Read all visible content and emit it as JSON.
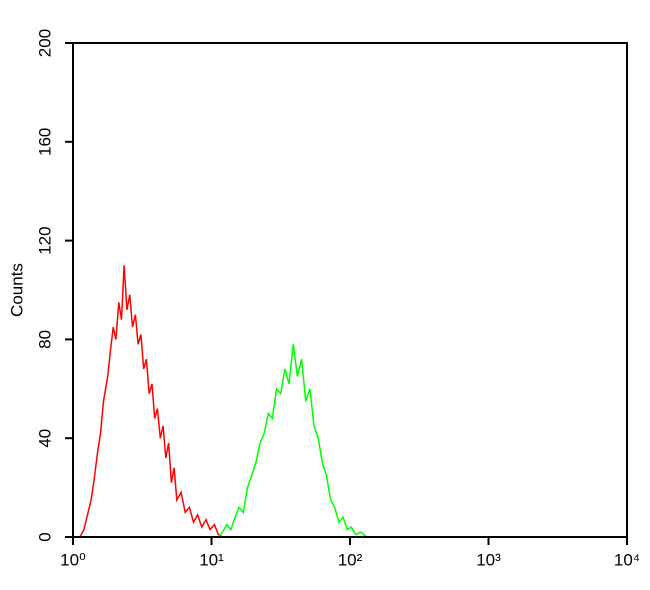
{
  "chart_data": {
    "type": "line",
    "y_label": "Counts",
    "x_scale": "log",
    "xlim": [
      1,
      10000
    ],
    "xticks": [
      {
        "value": 1,
        "label": "10⁰"
      },
      {
        "value": 10,
        "label": "10¹"
      },
      {
        "value": 100,
        "label": "10²"
      },
      {
        "value": 1000,
        "label": "10³"
      },
      {
        "value": 10000,
        "label": "10⁴"
      }
    ],
    "ylim": [
      0,
      200
    ],
    "yticks": [
      0,
      40,
      80,
      120,
      160,
      200
    ],
    "series": [
      {
        "color": "#ff0000",
        "x": [
          1.12,
          1.2,
          1.26,
          1.35,
          1.41,
          1.51,
          1.58,
          1.66,
          1.78,
          1.86,
          1.95,
          2.04,
          2.14,
          2.24,
          2.34,
          2.45,
          2.57,
          2.69,
          2.82,
          2.95,
          3.09,
          3.24,
          3.39,
          3.55,
          3.72,
          3.89,
          4.07,
          4.27,
          4.47,
          4.68,
          4.9,
          5.13,
          5.37,
          5.62,
          6.03,
          6.46,
          6.92,
          7.41,
          7.94,
          8.51,
          9.12,
          9.77,
          10.5,
          11.2,
          12.0
        ],
        "values": [
          0,
          3,
          8,
          15,
          22,
          35,
          42,
          55,
          65,
          75,
          85,
          80,
          95,
          88,
          110,
          92,
          98,
          85,
          90,
          78,
          82,
          68,
          72,
          58,
          62,
          48,
          52,
          40,
          45,
          32,
          38,
          22,
          28,
          15,
          18,
          10,
          12,
          6,
          9,
          4,
          7,
          3,
          5,
          1,
          0
        ]
      },
      {
        "color": "#00ff00",
        "x": [
          11.2,
          12.0,
          12.9,
          13.8,
          14.8,
          15.8,
          17.0,
          18.2,
          19.5,
          20.9,
          22.4,
          24.0,
          25.7,
          27.5,
          29.5,
          31.6,
          33.9,
          36.3,
          38.9,
          41.7,
          44.7,
          47.9,
          51.3,
          55.0,
          58.9,
          63.1,
          67.6,
          72.4,
          77.6,
          83.2,
          89.1,
          95.5,
          102,
          110,
          120,
          132
        ],
        "values": [
          0,
          2,
          5,
          3,
          8,
          12,
          10,
          20,
          25,
          30,
          38,
          42,
          50,
          48,
          60,
          58,
          68,
          62,
          78,
          65,
          72,
          55,
          60,
          45,
          40,
          30,
          25,
          15,
          12,
          6,
          8,
          3,
          4,
          1,
          2,
          0
        ]
      }
    ]
  }
}
